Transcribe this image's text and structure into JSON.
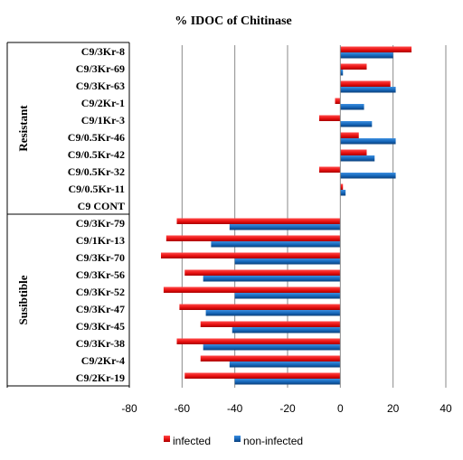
{
  "chart_data": {
    "type": "bar",
    "orientation": "horizontal",
    "title": "% IDOC of  Chitinase",
    "groups": [
      {
        "label": "Resistant",
        "categories": [
          "C9/3Kr-8",
          "C9/3Kr-69",
          "C9/3Kr-63",
          "C9/2Kr-1",
          "C9/1Kr-3",
          "C9/0.5Kr-46",
          "C9/0.5Kr-42",
          "C9/0.5Kr-32",
          "C9/0.5Kr-11",
          "C9 CONT"
        ]
      },
      {
        "label": "Susibtible",
        "categories": [
          "C9/3Kr-79",
          "C9/1Kr-13",
          "C9/3Kr-70",
          "C9/3Kr-56",
          "C9/3Kr-52",
          "C9/3Kr-47",
          "C9/3Kr-45",
          "C9/3Kr-38",
          "C9/2Kr-4",
          "C9/2Kr-19"
        ]
      }
    ],
    "categories": [
      "C9/3Kr-8",
      "C9/3Kr-69",
      "C9/3Kr-63",
      "C9/2Kr-1",
      "C9/1Kr-3",
      "C9/0.5Kr-46",
      "C9/0.5Kr-42",
      "C9/0.5Kr-32",
      "C9/0.5Kr-11",
      "C9 CONT",
      "C9/3Kr-79",
      "C9/1Kr-13",
      "C9/3Kr-70",
      "C9/3Kr-56",
      "C9/3Kr-52",
      "C9/3Kr-47",
      "C9/3Kr-45",
      "C9/3Kr-38",
      "C9/2Kr-4",
      "C9/2Kr-19"
    ],
    "series": [
      {
        "name": "infected",
        "color": "#e81010",
        "values": [
          27,
          10,
          19,
          -2,
          -8,
          7,
          10,
          -8,
          1,
          0,
          -62,
          -66,
          -68,
          -59,
          -67,
          -61,
          -53,
          -62,
          -53,
          -59
        ]
      },
      {
        "name": "non-infected",
        "color": "#1565b8",
        "values": [
          20,
          1,
          21,
          9,
          12,
          21,
          13,
          21,
          2,
          0,
          -42,
          -49,
          -40,
          -52,
          -40,
          -51,
          -41,
          -52,
          -42,
          -40
        ]
      }
    ],
    "xlim": [
      -80,
      40
    ],
    "xticks": [
      -80,
      -60,
      -40,
      -20,
      0,
      20,
      40
    ],
    "xticklabels": [
      "-80",
      "-60",
      "-40",
      "-20",
      "0",
      "20",
      "40"
    ],
    "grid": "vertical",
    "legend": "bottom"
  }
}
